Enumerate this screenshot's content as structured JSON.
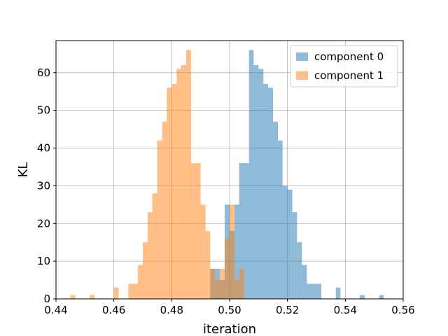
{
  "chart_data": {
    "type": "histogram",
    "xlabel": "iteration",
    "ylabel": "KL",
    "xlim": [
      0.44,
      0.56
    ],
    "ylim": [
      0,
      68.5
    ],
    "xticks": [
      0.44,
      0.46,
      0.48,
      0.5,
      0.52,
      0.54,
      0.56
    ],
    "xtick_labels": [
      "0.44",
      "0.46",
      "0.48",
      "0.50",
      "0.52",
      "0.54",
      "0.56"
    ],
    "yticks": [
      0,
      10,
      20,
      30,
      40,
      50,
      60
    ],
    "ytick_labels": [
      "0",
      "10",
      "20",
      "30",
      "40",
      "50",
      "60"
    ],
    "grid": true,
    "legend_position": "top-right",
    "series": [
      {
        "name": "component 0",
        "color": "#1f77b4",
        "alpha": 0.5,
        "bins": [
          {
            "x0": 0.4933,
            "x1": 0.4967,
            "count": 8
          },
          {
            "x0": 0.4967,
            "x1": 0.4983,
            "count": 5
          },
          {
            "x0": 0.4983,
            "x1": 0.5,
            "count": 25
          },
          {
            "x0": 0.5,
            "x1": 0.5017,
            "count": 18
          },
          {
            "x0": 0.5017,
            "x1": 0.5033,
            "count": 25
          },
          {
            "x0": 0.5033,
            "x1": 0.505,
            "count": 36
          },
          {
            "x0": 0.505,
            "x1": 0.5067,
            "count": 36
          },
          {
            "x0": 0.5067,
            "x1": 0.5083,
            "count": 66
          },
          {
            "x0": 0.5083,
            "x1": 0.51,
            "count": 62
          },
          {
            "x0": 0.51,
            "x1": 0.5117,
            "count": 61
          },
          {
            "x0": 0.5117,
            "x1": 0.5133,
            "count": 57
          },
          {
            "x0": 0.5133,
            "x1": 0.515,
            "count": 56
          },
          {
            "x0": 0.515,
            "x1": 0.5167,
            "count": 47
          },
          {
            "x0": 0.5167,
            "x1": 0.5183,
            "count": 42
          },
          {
            "x0": 0.5183,
            "x1": 0.52,
            "count": 30
          },
          {
            "x0": 0.52,
            "x1": 0.5217,
            "count": 29
          },
          {
            "x0": 0.5217,
            "x1": 0.5233,
            "count": 23
          },
          {
            "x0": 0.5233,
            "x1": 0.525,
            "count": 15
          },
          {
            "x0": 0.525,
            "x1": 0.5267,
            "count": 9
          },
          {
            "x0": 0.5267,
            "x1": 0.5283,
            "count": 4
          },
          {
            "x0": 0.5283,
            "x1": 0.53,
            "count": 4
          },
          {
            "x0": 0.53,
            "x1": 0.5317,
            "count": 4
          },
          {
            "x0": 0.5367,
            "x1": 0.5383,
            "count": 3
          },
          {
            "x0": 0.545,
            "x1": 0.5467,
            "count": 1
          },
          {
            "x0": 0.5517,
            "x1": 0.5533,
            "count": 1
          }
        ]
      },
      {
        "name": "component 1",
        "color": "#ff7f0e",
        "alpha": 0.5,
        "bins": [
          {
            "x0": 0.445,
            "x1": 0.4467,
            "count": 1
          },
          {
            "x0": 0.4517,
            "x1": 0.4533,
            "count": 1
          },
          {
            "x0": 0.46,
            "x1": 0.4617,
            "count": 3
          },
          {
            "x0": 0.465,
            "x1": 0.4667,
            "count": 4
          },
          {
            "x0": 0.4667,
            "x1": 0.4683,
            "count": 4
          },
          {
            "x0": 0.4683,
            "x1": 0.47,
            "count": 9
          },
          {
            "x0": 0.47,
            "x1": 0.4717,
            "count": 15
          },
          {
            "x0": 0.4717,
            "x1": 0.4733,
            "count": 23
          },
          {
            "x0": 0.4733,
            "x1": 0.475,
            "count": 28
          },
          {
            "x0": 0.475,
            "x1": 0.4767,
            "count": 42
          },
          {
            "x0": 0.4767,
            "x1": 0.4783,
            "count": 47
          },
          {
            "x0": 0.4783,
            "x1": 0.48,
            "count": 56
          },
          {
            "x0": 0.48,
            "x1": 0.4817,
            "count": 57
          },
          {
            "x0": 0.4817,
            "x1": 0.4833,
            "count": 61
          },
          {
            "x0": 0.4833,
            "x1": 0.485,
            "count": 62
          },
          {
            "x0": 0.485,
            "x1": 0.4867,
            "count": 66
          },
          {
            "x0": 0.4867,
            "x1": 0.4883,
            "count": 36
          },
          {
            "x0": 0.4883,
            "x1": 0.49,
            "count": 36
          },
          {
            "x0": 0.49,
            "x1": 0.4917,
            "count": 25
          },
          {
            "x0": 0.4917,
            "x1": 0.4933,
            "count": 18
          },
          {
            "x0": 0.4933,
            "x1": 0.495,
            "count": 8
          },
          {
            "x0": 0.495,
            "x1": 0.4967,
            "count": 5
          },
          {
            "x0": 0.4967,
            "x1": 0.4983,
            "count": 8
          },
          {
            "x0": 0.4983,
            "x1": 0.5,
            "count": 16
          },
          {
            "x0": 0.5,
            "x1": 0.5017,
            "count": 25
          },
          {
            "x0": 0.5017,
            "x1": 0.5033,
            "count": 5
          },
          {
            "x0": 0.5033,
            "x1": 0.505,
            "count": 8
          }
        ]
      }
    ]
  }
}
